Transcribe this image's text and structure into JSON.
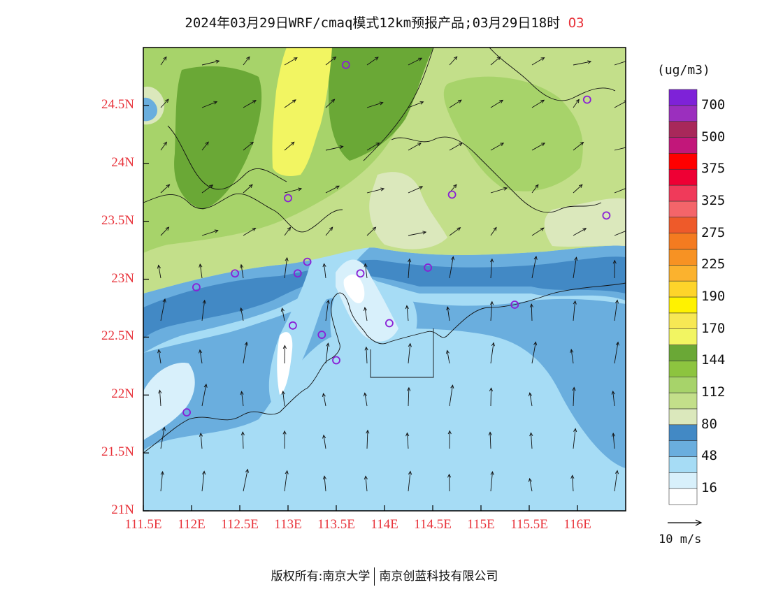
{
  "title": {
    "text": "2024年03月29日WRF/cmaq模式12km预报产品;03月29日18时",
    "species": "O3"
  },
  "map": {
    "lat_ticks": [
      {
        "label": "24.5N",
        "lat": 24.5
      },
      {
        "label": "24N",
        "lat": 24.0
      },
      {
        "label": "23.5N",
        "lat": 23.5
      },
      {
        "label": "23N",
        "lat": 23.0
      },
      {
        "label": "22.5N",
        "lat": 22.5
      },
      {
        "label": "22N",
        "lat": 22.0
      },
      {
        "label": "21.5N",
        "lat": 21.5
      },
      {
        "label": "21N",
        "lat": 21.0
      }
    ],
    "lon_ticks": [
      {
        "label": "111.5E",
        "lon": 111.5
      },
      {
        "label": "112E",
        "lon": 112.0
      },
      {
        "label": "112.5E",
        "lon": 112.5
      },
      {
        "label": "113E",
        "lon": 113.0
      },
      {
        "label": "113.5E",
        "lon": 113.5
      },
      {
        "label": "114E",
        "lon": 114.0
      },
      {
        "label": "114.5E",
        "lon": 114.5
      },
      {
        "label": "115E",
        "lon": 115.0
      },
      {
        "label": "115.5E",
        "lon": 115.5
      },
      {
        "label": "116E",
        "lon": 116.0
      }
    ],
    "extent": {
      "lon_min": 111.5,
      "lon_max": 116.5,
      "lat_min": 21.0,
      "lat_max": 25.0
    }
  },
  "legend": {
    "unit": "(ug/m3)",
    "colors": [
      "#ffffff",
      "#d8f0fb",
      "#a6dcf5",
      "#6aaede",
      "#4289c5",
      "#dbe8bc",
      "#c3df8a",
      "#a7d36a",
      "#8dc43f",
      "#6aa836",
      "#f2f562",
      "#f7e854",
      "#fff200",
      "#fed42a",
      "#fbb22e",
      "#f79223",
      "#f47b20",
      "#ee5a2a",
      "#f4656a",
      "#f03a5a",
      "#ee0034",
      "#ff0000",
      "#c2177a",
      "#a8285a",
      "#9b2fbe",
      "#7e22d8"
    ],
    "labels": [
      {
        "text": "16",
        "index": 1
      },
      {
        "text": "48",
        "index": 3
      },
      {
        "text": "80",
        "index": 5
      },
      {
        "text": "112",
        "index": 7
      },
      {
        "text": "144",
        "index": 9
      },
      {
        "text": "170",
        "index": 11
      },
      {
        "text": "190",
        "index": 13
      },
      {
        "text": "225",
        "index": 15
      },
      {
        "text": "275",
        "index": 17
      },
      {
        "text": "325",
        "index": 19
      },
      {
        "text": "375",
        "index": 21
      },
      {
        "text": "500",
        "index": 23
      },
      {
        "text": "700",
        "index": 25
      }
    ]
  },
  "wind_reference": {
    "label": "10 m/s"
  },
  "stations": [
    {
      "lon": 113.6,
      "lat": 24.85
    },
    {
      "lon": 116.1,
      "lat": 24.55
    },
    {
      "lon": 113.0,
      "lat": 23.7
    },
    {
      "lon": 114.7,
      "lat": 23.73
    },
    {
      "lon": 116.3,
      "lat": 23.55
    },
    {
      "lon": 112.45,
      "lat": 23.05
    },
    {
      "lon": 112.05,
      "lat": 22.93
    },
    {
      "lon": 113.1,
      "lat": 23.05
    },
    {
      "lon": 113.2,
      "lat": 23.15
    },
    {
      "lon": 113.75,
      "lat": 23.05
    },
    {
      "lon": 114.45,
      "lat": 23.1
    },
    {
      "lon": 115.35,
      "lat": 22.78
    },
    {
      "lon": 113.05,
      "lat": 22.6
    },
    {
      "lon": 113.35,
      "lat": 22.52
    },
    {
      "lon": 114.05,
      "lat": 22.62
    },
    {
      "lon": 113.5,
      "lat": 22.3
    },
    {
      "lon": 111.95,
      "lat": 21.85
    }
  ],
  "footer": {
    "left": "版权所有:南京大学",
    "right": "南京创蓝科技有限公司"
  }
}
